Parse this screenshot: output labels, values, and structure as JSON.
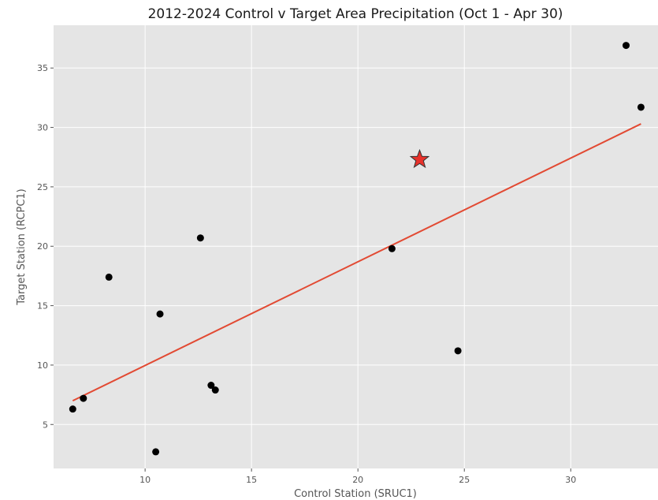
{
  "chart_data": {
    "type": "scatter",
    "title": "2012-2024 Control v Target Area Precipitation (Oct 1 - Apr 30)",
    "xlabel": "Control Station (SRUC1)",
    "ylabel": "Target Station (RCPC1)",
    "xlim": [
      5.7,
      34.1
    ],
    "ylim": [
      1.3,
      38.6
    ],
    "xticks": [
      10,
      15,
      20,
      25,
      30
    ],
    "yticks": [
      5,
      10,
      15,
      20,
      25,
      30,
      35
    ],
    "grid": true,
    "points": [
      {
        "x": 6.6,
        "y": 6.3
      },
      {
        "x": 7.1,
        "y": 7.2
      },
      {
        "x": 8.3,
        "y": 17.4
      },
      {
        "x": 10.5,
        "y": 2.7
      },
      {
        "x": 10.7,
        "y": 14.3
      },
      {
        "x": 12.6,
        "y": 20.7
      },
      {
        "x": 13.1,
        "y": 8.3
      },
      {
        "x": 13.3,
        "y": 7.9
      },
      {
        "x": 21.6,
        "y": 19.8
      },
      {
        "x": 24.7,
        "y": 11.2
      },
      {
        "x": 32.6,
        "y": 36.9
      },
      {
        "x": 33.3,
        "y": 31.7
      }
    ],
    "highlight_point": {
      "x": 22.9,
      "y": 27.3,
      "marker": "star",
      "color": "#e8322b"
    },
    "fit_line": {
      "x": [
        6.6,
        33.3
      ],
      "y": [
        7.0,
        30.3
      ],
      "color": "#e24a33"
    }
  }
}
